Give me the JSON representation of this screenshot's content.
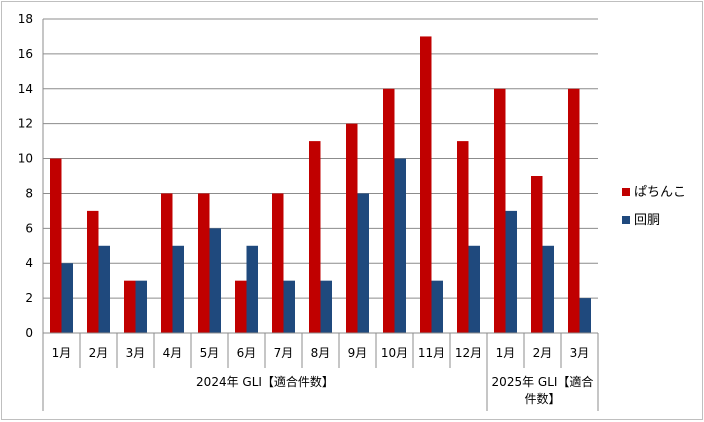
{
  "chart_data": {
    "type": "bar",
    "categories": [
      "1月",
      "2月",
      "3月",
      "4月",
      "5月",
      "6月",
      "7月",
      "8月",
      "9月",
      "10月",
      "11月",
      "12月",
      "1月",
      "2月",
      "3月"
    ],
    "groups": [
      {
        "label": "2024年 GLI【適合件数】",
        "start": 0,
        "count": 12,
        "lines": [
          "2024年 GLI【適合件数】"
        ]
      },
      {
        "label": "2025年 GLI【適合件数】",
        "start": 12,
        "count": 3,
        "lines": [
          "2025年 GLI【適合",
          "件数】"
        ]
      }
    ],
    "series": [
      {
        "name": "ぱちんこ",
        "color": "#C00000",
        "values": [
          10,
          7,
          3,
          8,
          8,
          3,
          8,
          11,
          12,
          14,
          17,
          11,
          14,
          9,
          14
        ]
      },
      {
        "name": "回胴",
        "color": "#1F497D",
        "values": [
          4,
          5,
          3,
          5,
          6,
          5,
          3,
          3,
          8,
          10,
          3,
          5,
          7,
          5,
          2
        ]
      }
    ],
    "ylim": [
      0,
      18
    ],
    "yticks": [
      "0",
      "2",
      "4",
      "6",
      "8",
      "10",
      "12",
      "14",
      "16",
      "18"
    ],
    "grid": true,
    "legend": "right"
  }
}
